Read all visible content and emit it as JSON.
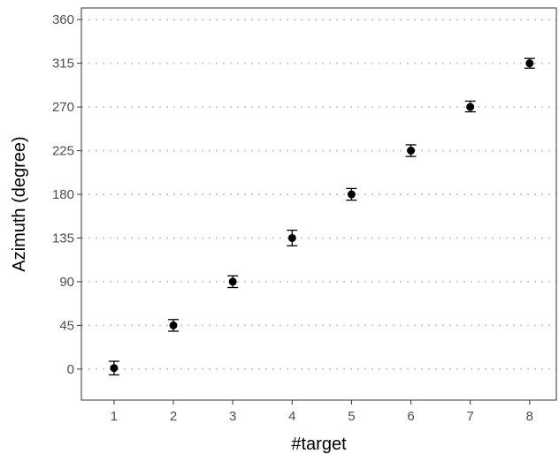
{
  "chart_data": {
    "type": "scatter",
    "xlabel": "#target",
    "ylabel": "Azimuth (degree)",
    "x_ticks": [
      1,
      2,
      3,
      4,
      5,
      6,
      7,
      8
    ],
    "y_ticks": [
      0,
      45,
      90,
      135,
      180,
      225,
      270,
      315,
      360
    ],
    "xlim": [
      0.45,
      8.45
    ],
    "ylim": [
      -32,
      372
    ],
    "grid": "horizontal-dotted",
    "legend": "none",
    "series": [
      {
        "points": [
          {
            "x": 1,
            "y": 1,
            "err_low": -6,
            "err_high": 8
          },
          {
            "x": 2,
            "y": 45,
            "err_low": 39,
            "err_high": 51
          },
          {
            "x": 3,
            "y": 90,
            "err_low": 84,
            "err_high": 96
          },
          {
            "x": 4,
            "y": 135,
            "err_low": 127,
            "err_high": 143
          },
          {
            "x": 5,
            "y": 180,
            "err_low": 174,
            "err_high": 186
          },
          {
            "x": 6,
            "y": 225,
            "err_low": 219,
            "err_high": 231
          },
          {
            "x": 7,
            "y": 270,
            "err_low": 265,
            "err_high": 276
          },
          {
            "x": 8,
            "y": 315,
            "err_low": 310,
            "err_high": 320
          }
        ]
      }
    ],
    "colors": {
      "point": "#000000",
      "grid": "#cccccc",
      "panel_border": "#333333",
      "tick_text": "#4d4d4d"
    }
  }
}
